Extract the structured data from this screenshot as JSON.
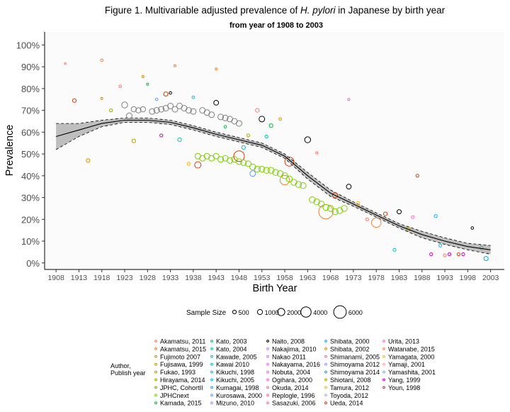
{
  "chart_data": {
    "type": "scatter",
    "title_prefix": "Figure 1. Multivariable adjusted prevalence of ",
    "title_italic": "H. pylori",
    "title_suffix": " in Japanese by birth year",
    "subtitle": "from year of 1908 to 2003",
    "xlabel": "Birth Year",
    "ylabel": "Prevalence",
    "xlim": [
      1905.5,
      2006
    ],
    "ylim": [
      -0.03,
      1.06
    ],
    "x_ticks": [
      1908,
      1913,
      1918,
      1923,
      1928,
      1933,
      1938,
      1943,
      1948,
      1953,
      1958,
      1963,
      1968,
      1973,
      1978,
      1983,
      1988,
      1993,
      1998,
      2003
    ],
    "y_ticks": [
      0,
      0.1,
      0.2,
      0.3,
      0.4,
      0.5,
      0.6,
      0.7,
      0.8,
      0.9,
      1.0
    ],
    "y_tick_labels": [
      "0%",
      "10%",
      "20%",
      "30%",
      "40%",
      "50%",
      "60%",
      "70%",
      "80%",
      "90%",
      "100%"
    ],
    "grid": false,
    "size_legend": {
      "title": "Sample Size",
      "sizes": [
        500,
        1000,
        2000,
        4000,
        6000
      ],
      "labels": [
        "500",
        "1000",
        "2000",
        "4000",
        "6000"
      ]
    },
    "author_legend": {
      "title_line1": "Author,",
      "title_line2": "Publish year",
      "entries": [
        {
          "name": "Akamatsu, 2011",
          "color": "#F8766D"
        },
        {
          "name": "Akamatsu, 2015",
          "color": "#EB8335"
        },
        {
          "name": "Fujimoto 2007",
          "color": "#DB8E00"
        },
        {
          "name": "Fujisawa, 1999",
          "color": "#C79800"
        },
        {
          "name": "Fukao, 1993",
          "color": "#AFA100"
        },
        {
          "name": "Hirayama, 2014",
          "color": "#93AA00"
        },
        {
          "name": "JPHC, CohortII",
          "color": "#72B000"
        },
        {
          "name": "JPHCnext",
          "color": "#7CD000"
        },
        {
          "name": "Kamada, 2015",
          "color": "#00BA38"
        },
        {
          "name": "Kato, 2003",
          "color": "#00BE67"
        },
        {
          "name": "Kato, 2004",
          "color": "#00C08B"
        },
        {
          "name": "Kawade, 2005",
          "color": "#00C1AA"
        },
        {
          "name": "Kawai 2010",
          "color": "#00BFC4"
        },
        {
          "name": "Kikuchi, 1998",
          "color": "#00BBDB"
        },
        {
          "name": "Kikuchi, 2005",
          "color": "#00B4EF"
        },
        {
          "name": "Kumagai, 1998",
          "color": "#00A9FF"
        },
        {
          "name": "Kurosawa, 2000",
          "color": "#619CFF"
        },
        {
          "name": "Mizuno, 2010",
          "color": "#8F91FF"
        },
        {
          "name": "Naito, 2008",
          "color": "#000000"
        },
        {
          "name": "Nakajima, 2010",
          "color": "#C77CFF"
        },
        {
          "name": "Nakao 2011",
          "color": "#DB72FB"
        },
        {
          "name": "Nakayama, 2016",
          "color": "#E86BF0"
        },
        {
          "name": "Nobuta, 2004",
          "color": "#F564E3"
        },
        {
          "name": "Ogihara, 2000",
          "color": "#FD61D1"
        },
        {
          "name": "Okuda, 2014",
          "color": "#FF62BC"
        },
        {
          "name": "Replogle, 1996",
          "color": "#FF67A4"
        },
        {
          "name": "Sasazuki, 2006",
          "color": "#FF6C91"
        },
        {
          "name": "Shibata, 2000",
          "color": "#00B0F6"
        },
        {
          "name": "Shibata, 2002",
          "color": "#E7861B"
        },
        {
          "name": "Shimanami, 2005",
          "color": "#FF6699"
        },
        {
          "name": "Shimoyama 2012",
          "color": "#9590FF"
        },
        {
          "name": "Shimoyama 2014",
          "color": "#00A5FF"
        },
        {
          "name": "Shiotani, 2008",
          "color": "#A3A500"
        },
        {
          "name": "Tamura, 2012",
          "color": "#FFB000"
        },
        {
          "name": "Toyoda, 2012",
          "color": "#B0B0B0"
        },
        {
          "name": "Ueda, 2014",
          "color": "#D83B01"
        },
        {
          "name": "Urita, 2013",
          "color": "#F066D8"
        },
        {
          "name": "Watanabe, 2015",
          "color": "#FF7F50"
        },
        {
          "name": "Yamagata, 2000",
          "color": "#E6C200"
        },
        {
          "name": "Yamaji, 2001",
          "color": "#FFA0B4"
        },
        {
          "name": "Yamashita, 2001",
          "color": "#59B7FF"
        },
        {
          "name": "Yang, 1999",
          "color": "#C000C0"
        },
        {
          "name": "Youn, 1998",
          "color": "#C0306A"
        }
      ]
    },
    "fit_curve": {
      "color": "#000000",
      "band_color": "#BEBEBE",
      "x": [
        1908,
        1913,
        1918,
        1923,
        1928,
        1933,
        1938,
        1943,
        1948,
        1953,
        1958,
        1963,
        1968,
        1973,
        1978,
        1983,
        1988,
        1993,
        1998,
        2003
      ],
      "y": [
        0.58,
        0.61,
        0.64,
        0.655,
        0.655,
        0.645,
        0.62,
        0.59,
        0.565,
        0.54,
        0.49,
        0.4,
        0.32,
        0.27,
        0.22,
        0.17,
        0.13,
        0.1,
        0.075,
        0.06
      ],
      "lower": [
        0.52,
        0.58,
        0.625,
        0.645,
        0.645,
        0.635,
        0.61,
        0.58,
        0.555,
        0.53,
        0.48,
        0.385,
        0.305,
        0.26,
        0.21,
        0.16,
        0.115,
        0.085,
        0.06,
        0.04
      ],
      "upper": [
        0.64,
        0.64,
        0.655,
        0.665,
        0.665,
        0.655,
        0.63,
        0.6,
        0.575,
        0.55,
        0.5,
        0.415,
        0.335,
        0.28,
        0.23,
        0.18,
        0.145,
        0.115,
        0.09,
        0.08
      ]
    },
    "points": [
      {
        "x": 1910,
        "y": 0.915,
        "n": 50,
        "c": "#F8766D"
      },
      {
        "x": 1912,
        "y": 0.745,
        "n": 300,
        "c": "#D83B01"
      },
      {
        "x": 1915,
        "y": 0.47,
        "n": 300,
        "c": "#DB8E00"
      },
      {
        "x": 1918,
        "y": 0.93,
        "n": 150,
        "c": "#EB8335"
      },
      {
        "x": 1918,
        "y": 0.755,
        "n": 100,
        "c": "#C79800"
      },
      {
        "x": 1920,
        "y": 0.7,
        "n": 200,
        "c": "#93AA00"
      },
      {
        "x": 1922,
        "y": 0.81,
        "n": 150,
        "c": "#F8766D"
      },
      {
        "x": 1923,
        "y": 0.725,
        "n": 800,
        "c": "#808080"
      },
      {
        "x": 1924,
        "y": 0.675,
        "n": 700,
        "c": "#808080"
      },
      {
        "x": 1925,
        "y": 0.56,
        "n": 300,
        "c": "#AFA100"
      },
      {
        "x": 1925,
        "y": 0.705,
        "n": 600,
        "c": "#808080"
      },
      {
        "x": 1926,
        "y": 0.7,
        "n": 600,
        "c": "#808080"
      },
      {
        "x": 1927,
        "y": 0.705,
        "n": 600,
        "c": "#808080"
      },
      {
        "x": 1927,
        "y": 0.855,
        "n": 100,
        "c": "#DB8E00"
      },
      {
        "x": 1928,
        "y": 0.82,
        "n": 100,
        "c": "#00BA38"
      },
      {
        "x": 1929,
        "y": 0.695,
        "n": 700,
        "c": "#808080"
      },
      {
        "x": 1930,
        "y": 0.7,
        "n": 700,
        "c": "#808080"
      },
      {
        "x": 1930,
        "y": 0.75,
        "n": 150,
        "c": "#619CFF"
      },
      {
        "x": 1931,
        "y": 0.705,
        "n": 700,
        "c": "#808080"
      },
      {
        "x": 1931,
        "y": 0.585,
        "n": 200,
        "c": "#C000C0"
      },
      {
        "x": 1932,
        "y": 0.71,
        "n": 700,
        "c": "#808080"
      },
      {
        "x": 1932,
        "y": 0.775,
        "n": 400,
        "c": "#D83B01"
      },
      {
        "x": 1933,
        "y": 0.72,
        "n": 700,
        "c": "#808080"
      },
      {
        "x": 1933,
        "y": 0.78,
        "n": 150,
        "c": "#000000"
      },
      {
        "x": 1934,
        "y": 0.905,
        "n": 100,
        "c": "#EB8335"
      },
      {
        "x": 1934,
        "y": 0.705,
        "n": 700,
        "c": "#808080"
      },
      {
        "x": 1935,
        "y": 0.72,
        "n": 700,
        "c": "#808080"
      },
      {
        "x": 1935,
        "y": 0.565,
        "n": 300,
        "c": "#00BFC4"
      },
      {
        "x": 1936,
        "y": 0.71,
        "n": 700,
        "c": "#808080"
      },
      {
        "x": 1937,
        "y": 0.7,
        "n": 700,
        "c": "#808080"
      },
      {
        "x": 1937,
        "y": 0.455,
        "n": 200,
        "c": "#FFB000"
      },
      {
        "x": 1938,
        "y": 0.695,
        "n": 700,
        "c": "#808080"
      },
      {
        "x": 1938,
        "y": 0.76,
        "n": 150,
        "c": "#00BFC4"
      },
      {
        "x": 1939,
        "y": 0.45,
        "n": 900,
        "c": "#D83B01"
      },
      {
        "x": 1939,
        "y": 0.49,
        "n": 700,
        "c": "#7CD000"
      },
      {
        "x": 1940,
        "y": 0.7,
        "n": 700,
        "c": "#808080"
      },
      {
        "x": 1940,
        "y": 0.48,
        "n": 700,
        "c": "#7CD000"
      },
      {
        "x": 1941,
        "y": 0.69,
        "n": 700,
        "c": "#808080"
      },
      {
        "x": 1941,
        "y": 0.49,
        "n": 700,
        "c": "#7CD000"
      },
      {
        "x": 1942,
        "y": 0.68,
        "n": 700,
        "c": "#808080"
      },
      {
        "x": 1942,
        "y": 0.48,
        "n": 700,
        "c": "#7CD000"
      },
      {
        "x": 1943,
        "y": 0.735,
        "n": 500,
        "c": "#000000"
      },
      {
        "x": 1943,
        "y": 0.49,
        "n": 700,
        "c": "#7CD000"
      },
      {
        "x": 1943,
        "y": 0.89,
        "n": 100,
        "c": "#EB8335"
      },
      {
        "x": 1944,
        "y": 0.67,
        "n": 700,
        "c": "#808080"
      },
      {
        "x": 1944,
        "y": 0.475,
        "n": 700,
        "c": "#7CD000"
      },
      {
        "x": 1945,
        "y": 0.665,
        "n": 700,
        "c": "#808080"
      },
      {
        "x": 1945,
        "y": 0.48,
        "n": 700,
        "c": "#7CD000"
      },
      {
        "x": 1945,
        "y": 0.625,
        "n": 150,
        "c": "#00BA38"
      },
      {
        "x": 1946,
        "y": 0.66,
        "n": 700,
        "c": "#808080"
      },
      {
        "x": 1946,
        "y": 0.47,
        "n": 700,
        "c": "#7CD000"
      },
      {
        "x": 1947,
        "y": 0.65,
        "n": 700,
        "c": "#808080"
      },
      {
        "x": 1947,
        "y": 0.475,
        "n": 700,
        "c": "#7CD000"
      },
      {
        "x": 1948,
        "y": 0.49,
        "n": 2500,
        "c": "#D83B01"
      },
      {
        "x": 1948,
        "y": 0.64,
        "n": 700,
        "c": "#808080"
      },
      {
        "x": 1948,
        "y": 0.465,
        "n": 700,
        "c": "#7CD000"
      },
      {
        "x": 1949,
        "y": 0.53,
        "n": 300,
        "c": "#00BFC4"
      },
      {
        "x": 1949,
        "y": 0.46,
        "n": 700,
        "c": "#7CD000"
      },
      {
        "x": 1950,
        "y": 0.585,
        "n": 200,
        "c": "#AFA100"
      },
      {
        "x": 1950,
        "y": 0.455,
        "n": 700,
        "c": "#7CD000"
      },
      {
        "x": 1951,
        "y": 0.41,
        "n": 700,
        "c": "#619CFF"
      },
      {
        "x": 1951,
        "y": 0.44,
        "n": 800,
        "c": "#7CD000"
      },
      {
        "x": 1952,
        "y": 0.43,
        "n": 800,
        "c": "#7CD000"
      },
      {
        "x": 1952,
        "y": 0.7,
        "n": 300,
        "c": "#F8766D"
      },
      {
        "x": 1953,
        "y": 0.66,
        "n": 700,
        "c": "#000000"
      },
      {
        "x": 1953,
        "y": 0.43,
        "n": 800,
        "c": "#7CD000"
      },
      {
        "x": 1954,
        "y": 0.425,
        "n": 800,
        "c": "#7CD000"
      },
      {
        "x": 1954,
        "y": 0.58,
        "n": 200,
        "c": "#00C1AA"
      },
      {
        "x": 1955,
        "y": 0.425,
        "n": 800,
        "c": "#7CD000"
      },
      {
        "x": 1955,
        "y": 0.63,
        "n": 300,
        "c": "#00BA38"
      },
      {
        "x": 1956,
        "y": 0.415,
        "n": 800,
        "c": "#7CD000"
      },
      {
        "x": 1957,
        "y": 0.41,
        "n": 800,
        "c": "#7CD000"
      },
      {
        "x": 1957,
        "y": 0.66,
        "n": 150,
        "c": "#C79800"
      },
      {
        "x": 1958,
        "y": 0.38,
        "n": 2000,
        "c": "#EB8335"
      },
      {
        "x": 1958,
        "y": 0.4,
        "n": 800,
        "c": "#7CD000"
      },
      {
        "x": 1959,
        "y": 0.465,
        "n": 1800,
        "c": "#D83B01"
      },
      {
        "x": 1959,
        "y": 0.385,
        "n": 800,
        "c": "#7CD000"
      },
      {
        "x": 1960,
        "y": 0.37,
        "n": 800,
        "c": "#7CD000"
      },
      {
        "x": 1961,
        "y": 0.36,
        "n": 800,
        "c": "#7CD000"
      },
      {
        "x": 1962,
        "y": 0.355,
        "n": 800,
        "c": "#7CD000"
      },
      {
        "x": 1963,
        "y": 0.565,
        "n": 800,
        "c": "#000000"
      },
      {
        "x": 1964,
        "y": 0.29,
        "n": 800,
        "c": "#7CD000"
      },
      {
        "x": 1965,
        "y": 0.28,
        "n": 800,
        "c": "#7CD000"
      },
      {
        "x": 1965,
        "y": 0.505,
        "n": 100,
        "c": "#F8766D"
      },
      {
        "x": 1966,
        "y": 0.27,
        "n": 800,
        "c": "#7CD000"
      },
      {
        "x": 1967,
        "y": 0.235,
        "n": 4500,
        "c": "#EB8335"
      },
      {
        "x": 1967,
        "y": 0.255,
        "n": 800,
        "c": "#7CD000"
      },
      {
        "x": 1968,
        "y": 0.25,
        "n": 800,
        "c": "#7CD000"
      },
      {
        "x": 1969,
        "y": 0.31,
        "n": 600,
        "c": "#D83B01"
      },
      {
        "x": 1969,
        "y": 0.235,
        "n": 800,
        "c": "#7CD000"
      },
      {
        "x": 1970,
        "y": 0.24,
        "n": 800,
        "c": "#7CD000"
      },
      {
        "x": 1971,
        "y": 0.25,
        "n": 800,
        "c": "#7CD000"
      },
      {
        "x": 1972,
        "y": 0.35,
        "n": 500,
        "c": "#000000"
      },
      {
        "x": 1972,
        "y": 0.75,
        "n": 100,
        "c": "#F564E3"
      },
      {
        "x": 1974,
        "y": 0.275,
        "n": 200,
        "c": "#FFB000"
      },
      {
        "x": 1976,
        "y": 0.2,
        "n": 200,
        "c": "#F8766D"
      },
      {
        "x": 1978,
        "y": 0.185,
        "n": 2000,
        "c": "#EB8335"
      },
      {
        "x": 1980,
        "y": 0.225,
        "n": 300,
        "c": "#D83B01"
      },
      {
        "x": 1982,
        "y": 0.06,
        "n": 200,
        "c": "#00BFC4"
      },
      {
        "x": 1983,
        "y": 0.235,
        "n": 400,
        "c": "#000000"
      },
      {
        "x": 1985,
        "y": 0.155,
        "n": 300,
        "c": "#AFA100"
      },
      {
        "x": 1986,
        "y": 0.21,
        "n": 200,
        "c": "#FF62BC"
      },
      {
        "x": 1987,
        "y": 0.4,
        "n": 200,
        "c": "#D83B01"
      },
      {
        "x": 1990,
        "y": 0.04,
        "n": 200,
        "c": "#C000C0"
      },
      {
        "x": 1991,
        "y": 0.215,
        "n": 200,
        "c": "#00A9FF"
      },
      {
        "x": 1992,
        "y": 0.08,
        "n": 200,
        "c": "#00B4EF"
      },
      {
        "x": 1993,
        "y": 0.035,
        "n": 200,
        "c": "#F8766D"
      },
      {
        "x": 1994,
        "y": 0.04,
        "n": 200,
        "c": "#C000C0"
      },
      {
        "x": 1996,
        "y": 0.04,
        "n": 200,
        "c": "#D83B01"
      },
      {
        "x": 1997,
        "y": 0.04,
        "n": 200,
        "c": "#C000C0"
      },
      {
        "x": 1999,
        "y": 0.16,
        "n": 150,
        "c": "#000000"
      },
      {
        "x": 2001,
        "y": 0.07,
        "n": 200,
        "c": "#00BFC4"
      },
      {
        "x": 2002,
        "y": 0.02,
        "n": 400,
        "c": "#00A9FF"
      }
    ]
  }
}
